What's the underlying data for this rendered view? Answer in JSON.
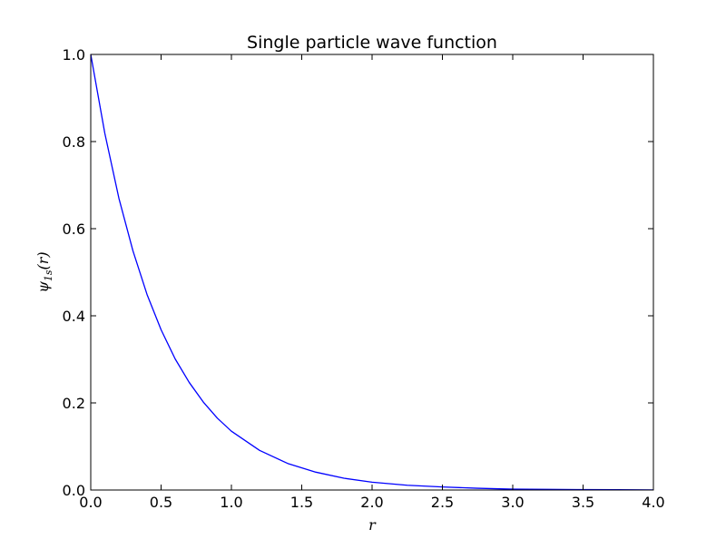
{
  "chart_data": {
    "type": "line",
    "title": "Single particle wave function",
    "xlabel": "r",
    "ylabel": "ψ1s(r)",
    "ylabel_parts": {
      "main": "ψ",
      "subscript": "1s",
      "argument": "(r)"
    },
    "xlim": [
      0.0,
      4.0
    ],
    "ylim": [
      0.0,
      1.0
    ],
    "xticks": [
      "0.0",
      "0.5",
      "1.0",
      "1.5",
      "2.0",
      "2.5",
      "3.0",
      "3.5",
      "4.0"
    ],
    "yticks": [
      "0.0",
      "0.2",
      "0.4",
      "0.6",
      "0.8",
      "1.0"
    ],
    "grid": false,
    "legend": "none",
    "series": [
      {
        "color": "#0000ff",
        "x": [
          0.0,
          0.1,
          0.2,
          0.3,
          0.4,
          0.5,
          0.6,
          0.7,
          0.8,
          0.9,
          1.0,
          1.2,
          1.4,
          1.6,
          1.8,
          2.0,
          2.25,
          2.5,
          2.75,
          3.0,
          3.25,
          3.5,
          3.75,
          4.0
        ],
        "y": [
          1.0,
          0.819,
          0.67,
          0.549,
          0.449,
          0.368,
          0.301,
          0.247,
          0.202,
          0.165,
          0.135,
          0.091,
          0.061,
          0.041,
          0.027,
          0.018,
          0.011,
          0.007,
          0.004,
          0.002,
          0.0015,
          0.001,
          0.0006,
          0.0003
        ]
      }
    ]
  }
}
